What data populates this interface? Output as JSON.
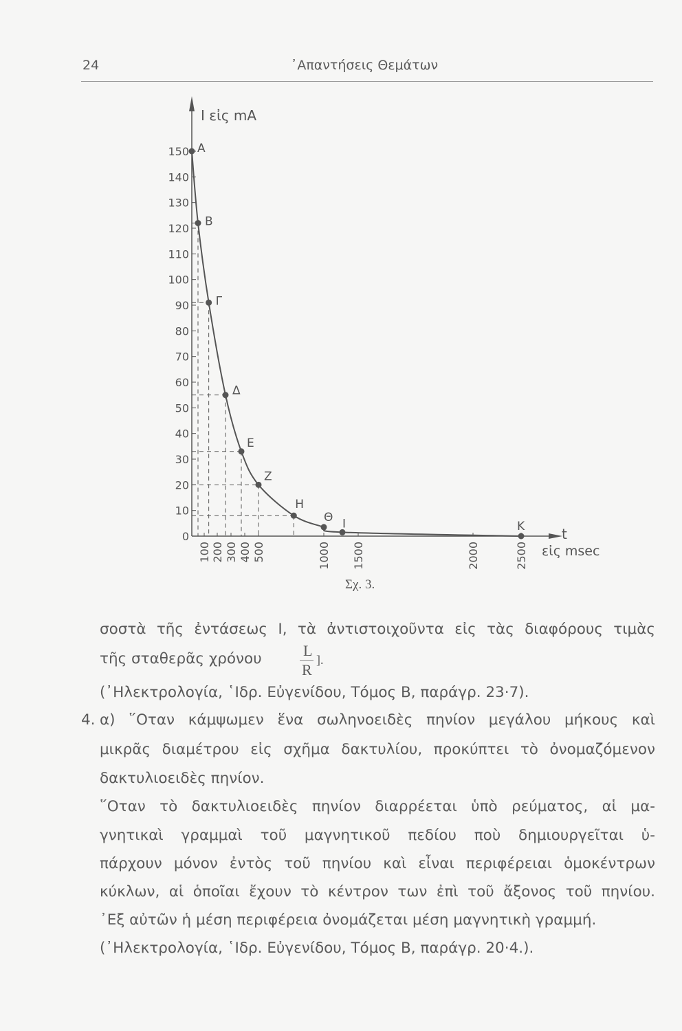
{
  "header": {
    "page_number": "24",
    "title": "᾽Απαντήσεις Θεμάτων"
  },
  "figure": {
    "caption": "Σχ. 3."
  },
  "chart_data": {
    "type": "line",
    "ylabel": "I εἰς mA",
    "xlabel": "t",
    "xunit": "εἰς msec",
    "ylim": [
      0,
      150
    ],
    "xlim": [
      0,
      2500
    ],
    "y_ticks": [
      0,
      10,
      20,
      30,
      40,
      50,
      60,
      70,
      80,
      90,
      100,
      110,
      120,
      130,
      140,
      150
    ],
    "x_ticks": [
      100,
      200,
      300,
      400,
      500,
      1000,
      1500,
      2000,
      2500
    ],
    "grid": false,
    "points": [
      {
        "label": "A",
        "t": 0,
        "I": 150
      },
      {
        "label": "B",
        "t": 50,
        "I": 122
      },
      {
        "label": "Γ",
        "t": 135,
        "I": 91
      },
      {
        "label": "Δ",
        "t": 260,
        "I": 55
      },
      {
        "label": "E",
        "t": 375,
        "I": 33
      },
      {
        "label": "Z",
        "t": 500,
        "I": 20
      },
      {
        "label": "H",
        "t": 770,
        "I": 8
      },
      {
        "label": "Θ",
        "t": 1000,
        "I": 3.5
      },
      {
        "label": "I",
        "t": 1270,
        "I": 1.5
      },
      {
        "label": "K",
        "t": 2500,
        "I": 0
      }
    ]
  },
  "body": {
    "lines": [
      "σοστὰ τῆς ἐντάσεως I, τὰ ἀντιστοιχοῦντα εἰς τὰς διαφόρους τιμὰς",
      "τῆς σταθερᾶς χρόνου",
      "(᾽Ηλεκτρολογία, ῾Ιδρ. Εὐγενίδου, Τόμος Β, παράγρ. 23·7).",
      "α) ῞Οταν κάμψωμεν ἕνα σωληνοειδὲς πηνίον μεγάλου μήκους καὶ",
      "μικρᾶς διαμέτρου εἰς σχῆμα δακτυλίου, προκύπτει τὸ ὀνομαζόμενον",
      "δακτυλιοειδὲς πηνίον.",
      "῞Οταν τὸ δακτυλιοειδὲς πηνίον διαρρέεται ὑπὸ ρεύματος, αἱ μα-",
      "γνητικαὶ γραμμαὶ τοῦ μαγνητικοῦ πεδίου ποὺ δημιουργεῖται ὑ-",
      "πάρχουν μόνον ἐντὸς τοῦ πηνίου καὶ εἶναι περιφέρειαι ὁμοκέντρων",
      "κύκλων, αἱ ὁποῖαι ἔχουν τὸ κέντρον των ἐπὶ τοῦ ἄξονος τοῦ πηνίου.",
      "᾽Εξ αὐτῶν ἡ μέση περιφέρεια ὀνομάζεται μέση μαγνητικὴ γραμμή.",
      "(᾽Ηλεκτρολογία, ῾Ιδρ. Εὐγενίδου, Τόμος Β, παράγρ. 20·4.)."
    ],
    "fraction_numerator": "L",
    "fraction_denominator": "R",
    "fraction_suffix": "].",
    "item_number": "4."
  }
}
